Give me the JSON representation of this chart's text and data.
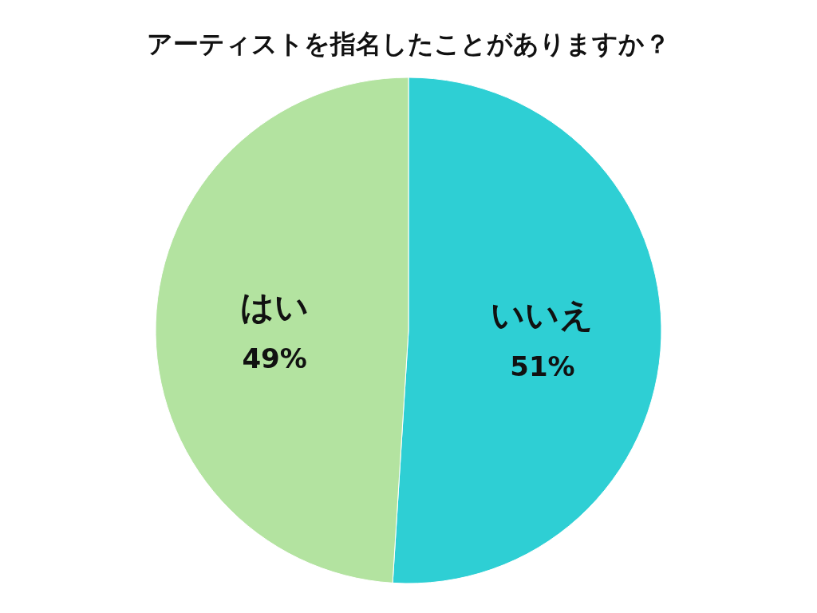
{
  "chart_data": {
    "type": "pie",
    "title": "アーティストを指名したことがありますか？",
    "categories": [
      "いいえ",
      "はい"
    ],
    "values": [
      51,
      49
    ],
    "value_labels": [
      "51%",
      "49%"
    ],
    "colors": [
      "#2ecfd4",
      "#b3e3a0"
    ]
  }
}
